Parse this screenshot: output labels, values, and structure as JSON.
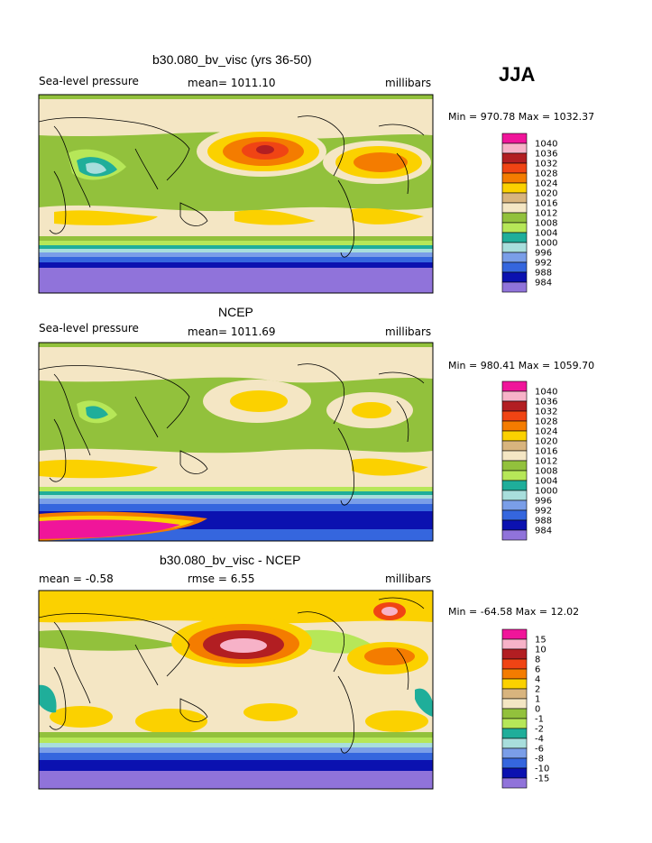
{
  "season": "JJA",
  "chart_data": [
    {
      "type": "heatmap",
      "title": "b30.080_bv_visc (yrs 36-50)",
      "left_label": "Sea-level pressure",
      "center_label": "mean= 1011.10",
      "right_label": "millibars",
      "minmax": "Min = 970.78 Max = 1032.37",
      "legend": {
        "levels": [
          "1040",
          "1036",
          "1032",
          "1028",
          "1024",
          "1020",
          "1016",
          "1012",
          "1008",
          "1004",
          "1000",
          "996",
          "992",
          "988",
          "984"
        ],
        "colors": [
          "#f0159a",
          "#f7b2c8",
          "#b21e22",
          "#f04414",
          "#f47c00",
          "#fbd100",
          "#d8b47e",
          "#f4e6c4",
          "#92c13c",
          "#b6e758",
          "#1fae9a",
          "#a8dedc",
          "#7a9ee8",
          "#3566de",
          "#0b11b0",
          "#9073da"
        ]
      }
    },
    {
      "type": "heatmap",
      "title": "NCEP",
      "left_label": "Sea-level pressure",
      "center_label": "mean= 1011.69",
      "right_label": "millibars",
      "minmax": "Min = 980.41 Max = 1059.70",
      "legend": {
        "levels": [
          "1040",
          "1036",
          "1032",
          "1028",
          "1024",
          "1020",
          "1016",
          "1012",
          "1008",
          "1004",
          "1000",
          "996",
          "992",
          "988",
          "984"
        ],
        "colors": [
          "#f0159a",
          "#f7b2c8",
          "#b21e22",
          "#f04414",
          "#f47c00",
          "#fbd100",
          "#d8b47e",
          "#f4e6c4",
          "#92c13c",
          "#b6e758",
          "#1fae9a",
          "#a8dedc",
          "#7a9ee8",
          "#3566de",
          "#0b11b0",
          "#9073da"
        ]
      }
    },
    {
      "type": "heatmap",
      "title": "b30.080_bv_visc - NCEP",
      "left_label": "mean =   -0.58",
      "center_label": "rmse =     6.55",
      "right_label": "millibars",
      "minmax": "Min = -64.58 Max =   12.02",
      "legend": {
        "levels": [
          "15",
          "10",
          "8",
          "6",
          "4",
          "2",
          "1",
          "0",
          "-1",
          "-2",
          "-4",
          "-6",
          "-8",
          "-10",
          "-15"
        ],
        "colors": [
          "#f0159a",
          "#f7b2c8",
          "#b21e22",
          "#f04414",
          "#f47c00",
          "#fbd100",
          "#d8b47e",
          "#f4e6c4",
          "#92c13c",
          "#b6e758",
          "#1fae9a",
          "#a8dedc",
          "#7a9ee8",
          "#3566de",
          "#0b11b0",
          "#9073da"
        ]
      }
    }
  ]
}
